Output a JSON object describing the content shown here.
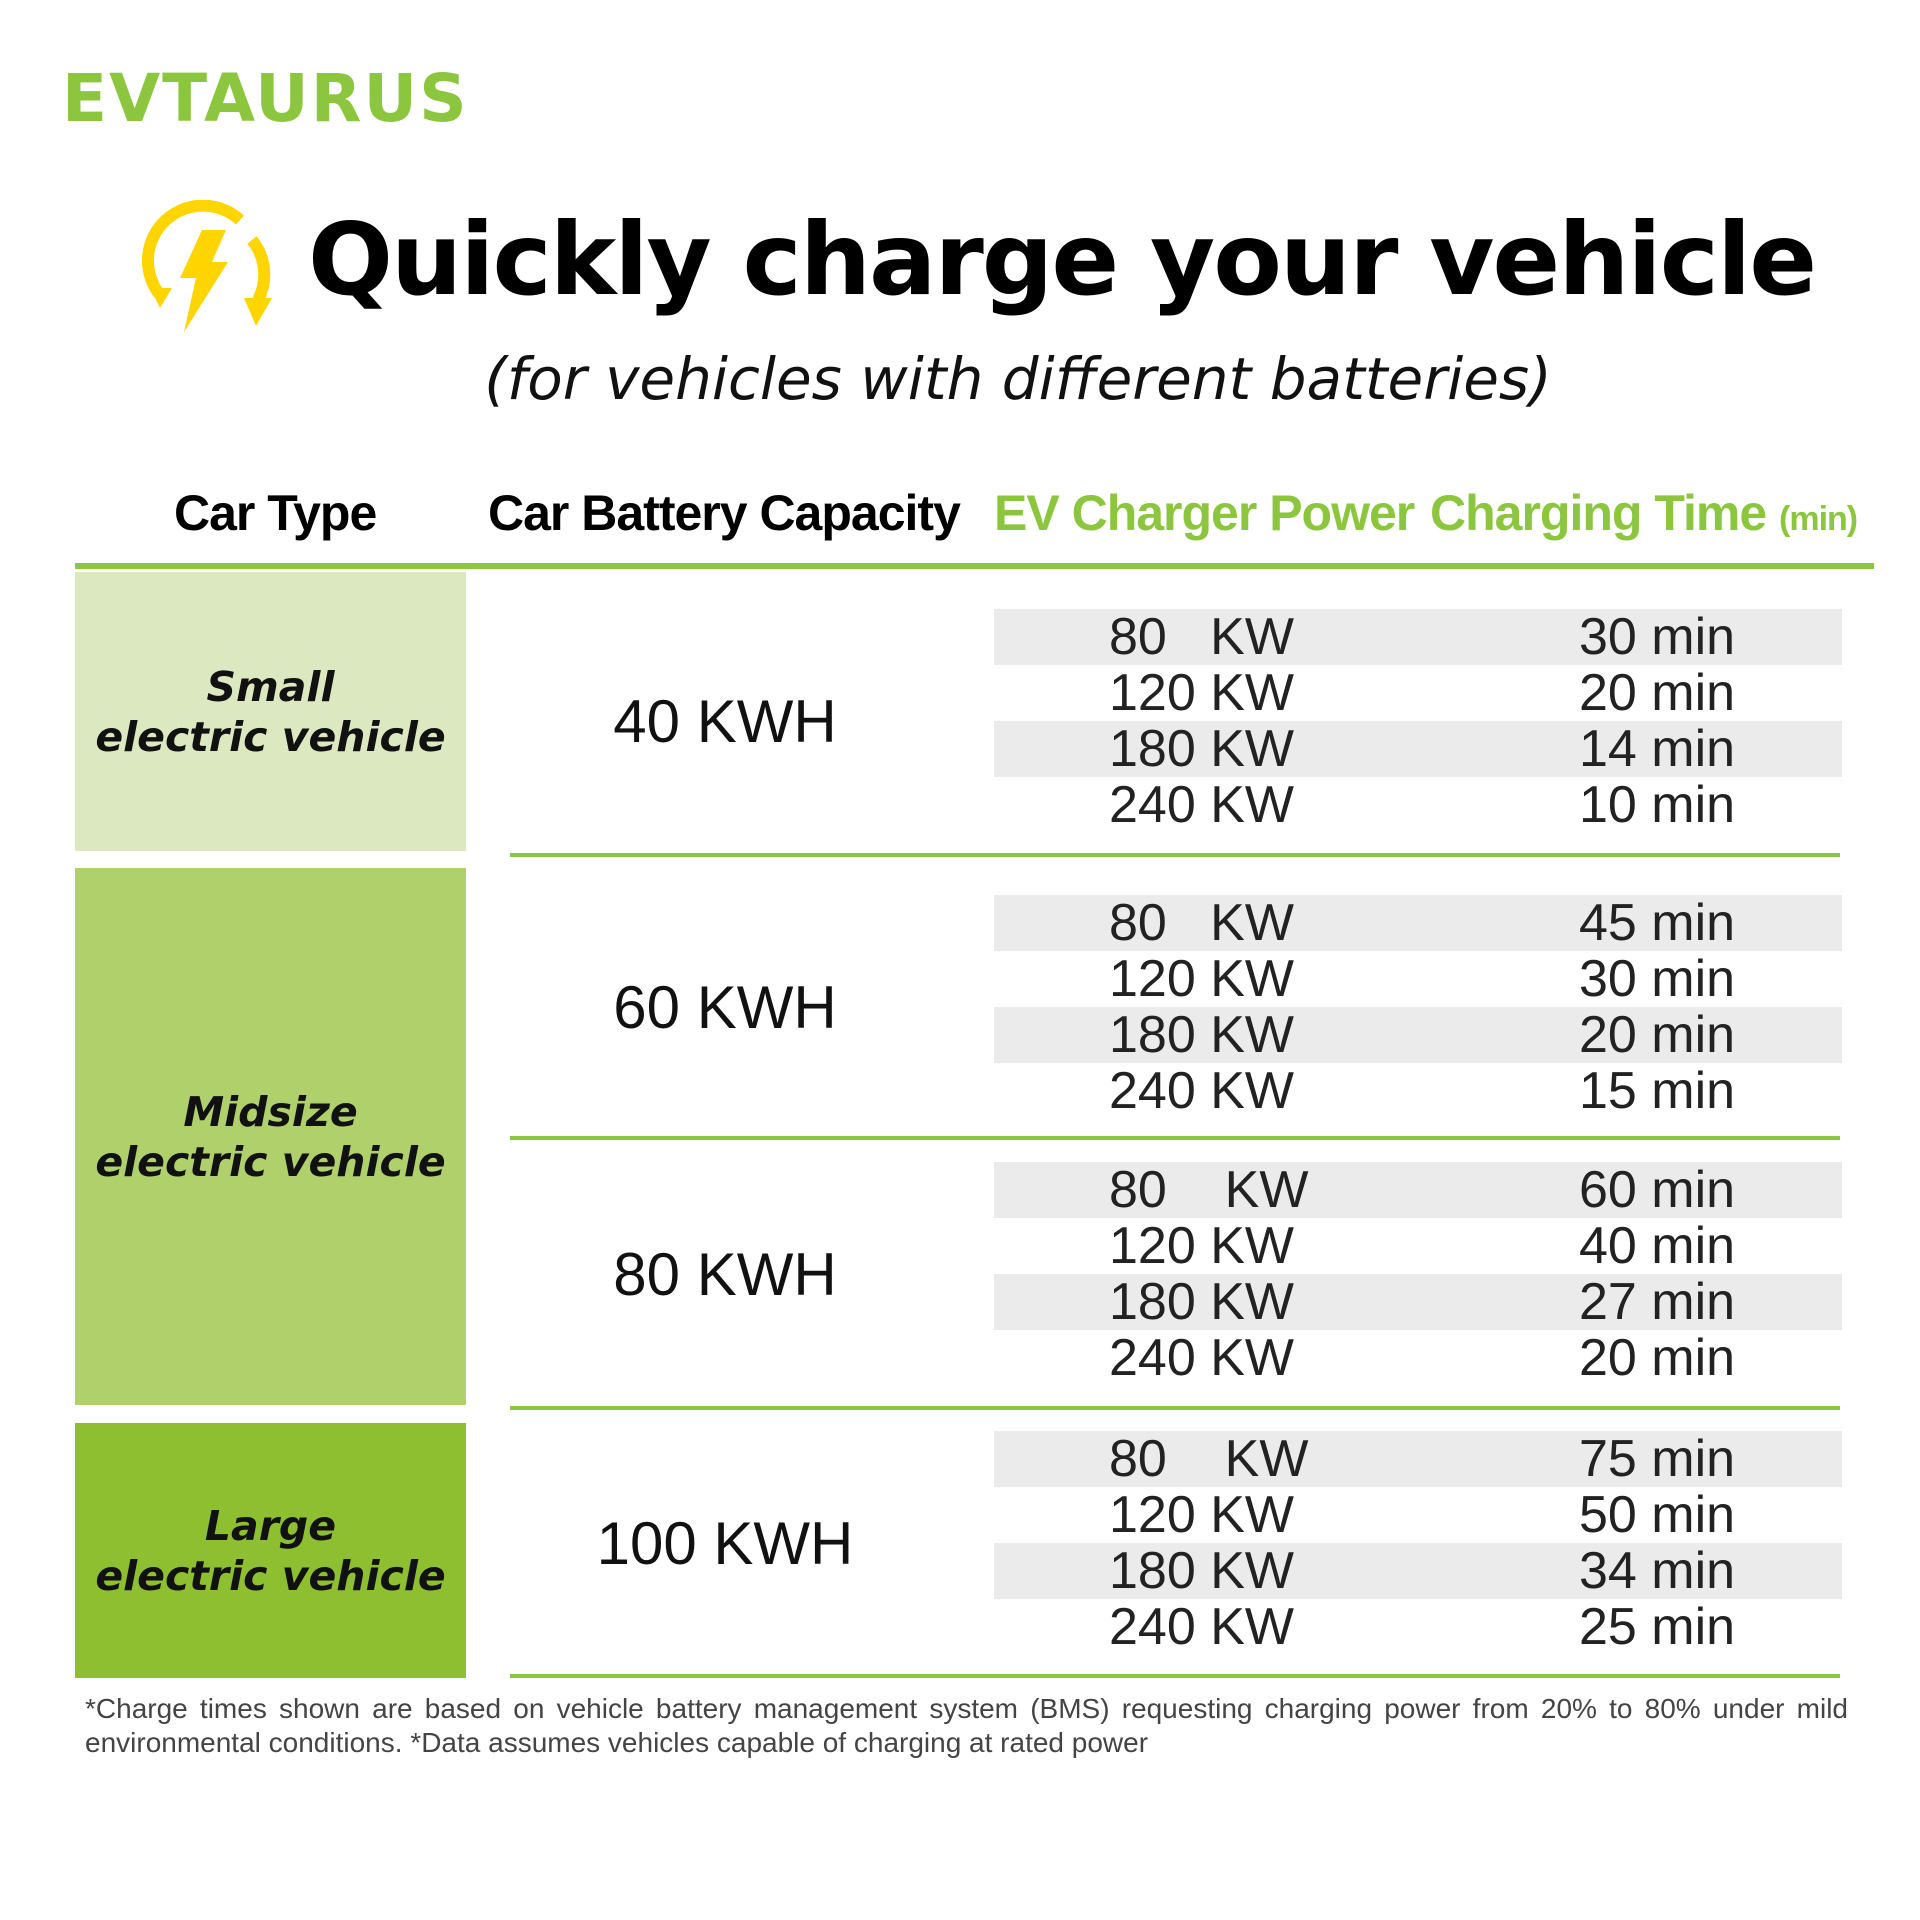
{
  "brand": {
    "logo": "EVTAURUS",
    "color": "#8cc63f"
  },
  "header": {
    "title": "Quickly charge your vehicle",
    "subtitle": "(for vehicles with different batteries)",
    "icon": "charging-bolt-icon"
  },
  "columns": {
    "car_type": "Car Type",
    "capacity": "Car Battery Capacity",
    "power": "EV Charger Power",
    "time": "Charging Time",
    "time_unit": "(min)"
  },
  "car_types": [
    {
      "label_1": "Small",
      "label_2": "electric vehicle",
      "color": "#dce9c0"
    },
    {
      "label_1": "Midsize",
      "label_2": "electric vehicle",
      "color": "#afd06a"
    },
    {
      "label_1": "Large",
      "label_2": "electric vehicle",
      "color": "#8dbf30"
    }
  ],
  "groups": [
    {
      "capacity": "40 KWH",
      "rows": [
        {
          "power": "80   KW",
          "time": "30 min"
        },
        {
          "power": "120 KW",
          "time": "20 min"
        },
        {
          "power": "180 KW",
          "time": "14 min"
        },
        {
          "power": "240 KW",
          "time": "10 min"
        }
      ]
    },
    {
      "capacity": "60 KWH",
      "rows": [
        {
          "power": "80   KW",
          "time": "45 min"
        },
        {
          "power": "120 KW",
          "time": "30 min"
        },
        {
          "power": "180 KW",
          "time": "20 min"
        },
        {
          "power": "240 KW",
          "time": "15 min"
        }
      ]
    },
    {
      "capacity": "80 KWH",
      "rows": [
        {
          "power": "80    KW",
          "time": "60 min"
        },
        {
          "power": "120 KW",
          "time": "40 min"
        },
        {
          "power": "180 KW",
          "time": "27 min"
        },
        {
          "power": "240 KW",
          "time": "20 min"
        }
      ]
    },
    {
      "capacity": "100 KWH",
      "rows": [
        {
          "power": "80    KW",
          "time": "75 min"
        },
        {
          "power": "120 KW",
          "time": "50 min"
        },
        {
          "power": "180 KW",
          "time": "34 min"
        },
        {
          "power": "240 KW",
          "time": "25 min"
        }
      ]
    }
  ],
  "footnote": "*Charge times shown are based on vehicle battery management system (BMS) requesting charging power from 20% to 80% under mild environmental conditions.  *Data assumes vehicles capable of charging at rated power"
}
